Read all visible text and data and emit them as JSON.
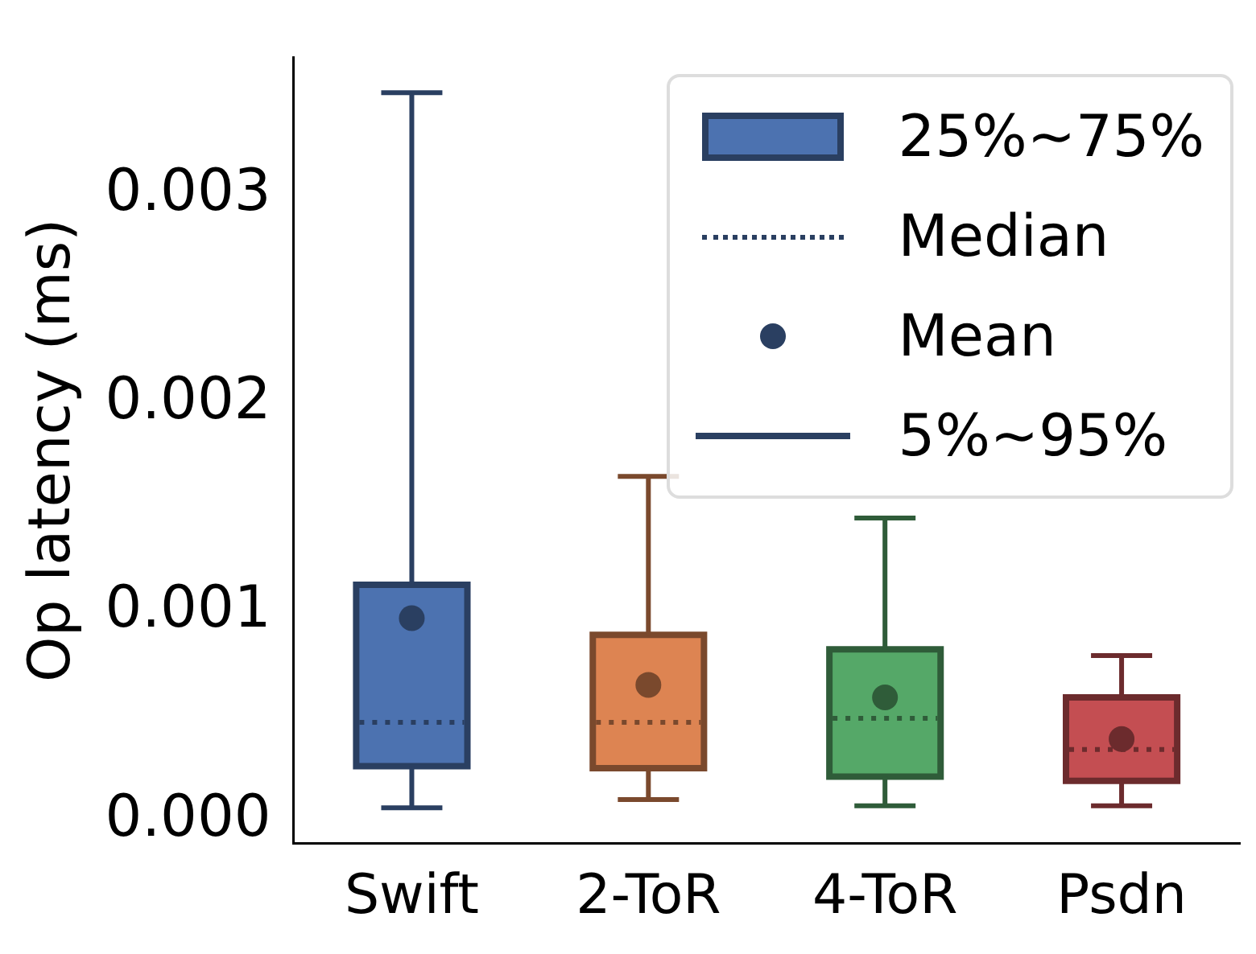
{
  "chart_data": {
    "type": "box",
    "ylabel": "Op latency (ms)",
    "categories": [
      "Swift",
      "2-ToR",
      "4-ToR",
      "Psdn"
    ],
    "boxes": [
      {
        "low": 6e-05,
        "q1": 0.00026,
        "median": 0.00047,
        "q3": 0.00113,
        "high": 0.00349,
        "mean": 0.00097
      },
      {
        "low": 0.0001,
        "q1": 0.00025,
        "median": 0.00047,
        "q3": 0.00089,
        "high": 0.00165,
        "mean": 0.00065
      },
      {
        "low": 7e-05,
        "q1": 0.00021,
        "median": 0.00049,
        "q3": 0.00082,
        "high": 0.00145,
        "mean": 0.00059
      },
      {
        "low": 7e-05,
        "q1": 0.00019,
        "median": 0.00034,
        "q3": 0.00059,
        "high": 0.00079,
        "mean": 0.00039
      }
    ],
    "colors": [
      "#4c72b0",
      "#dd8452",
      "#55a868",
      "#c44e52"
    ],
    "ylim": [
      -0.00011,
      0.00366
    ],
    "yticks": [
      {
        "value": 0,
        "label": "0.000"
      },
      0.001,
      0.002,
      0.003
    ],
    "grid": false,
    "marker": "circle",
    "line_style": "dotted",
    "annotations": [
      "25%~75%",
      "Median",
      "Mean",
      "5%~95%"
    ]
  }
}
